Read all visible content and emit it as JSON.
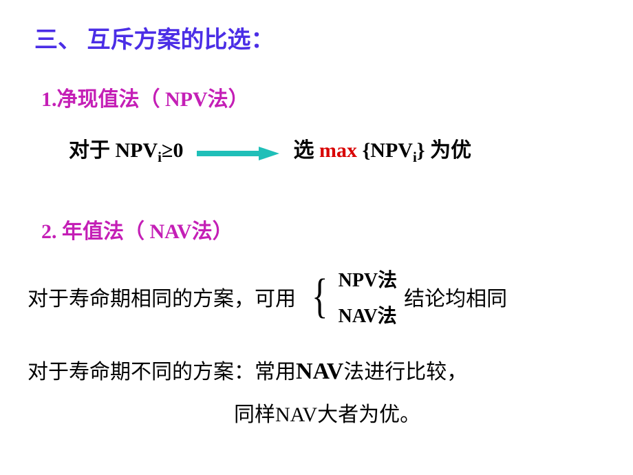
{
  "colors": {
    "title_color": "#4b2ee6",
    "sec_head_color": "#c41fb6",
    "accent_red": "#d80000",
    "text_black": "#000000",
    "arrow_color": "#1fbfb8",
    "bg": "#ffffff"
  },
  "texts": {
    "title": "三、 互斥方案的比选：",
    "sec1_prefix": "1.净现值法（",
    "sec1_npv": " NPV",
    "sec1_suffix": "法）",
    "row1_left_prefix": "对于 ",
    "row1_npv": "NPV",
    "row1_sub": "i",
    "row1_geq": "≥0",
    "row1_right_pre": "选 ",
    "row1_max": "max",
    "row1_brace_open": " {NPV",
    "row1_sub2": "i",
    "row1_brace_close": "}",
    "row1_right_post": " 为优",
    "sec2_prefix": "2. 年值法（",
    "sec2_nav": " NAV",
    "sec2_suffix": "法）",
    "line2_a": "对于寿命期相同的方案，可用",
    "brace_item1": "NPV法",
    "brace_item2": "NAV法",
    "line2_b": "结论均相同",
    "line3_a": "对于寿命期不同的方案：常用",
    "line3_nav": "NAV",
    "line3_b": "法进行比较，",
    "line4": "同样NAV大者为优。"
  },
  "arrow": {
    "width": 120,
    "height": 20,
    "color": "#1fbfb8"
  },
  "fontsizes": {
    "title": 34,
    "section": 30,
    "body": 30,
    "brace_items": 28,
    "nav_big": 34
  }
}
